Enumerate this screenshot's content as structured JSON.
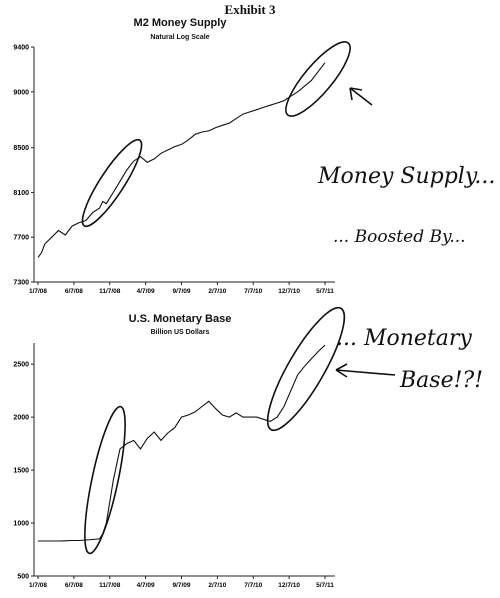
{
  "exhibit_label": "Exhibit 3",
  "chart_data": [
    {
      "type": "line",
      "title": "M2 Money Supply",
      "subtitle": "Natural Log Scale",
      "x_ticks": [
        "1/7/08",
        "6/7/08",
        "11/7/08",
        "4/7/09",
        "9/7/09",
        "2/7/10",
        "7/7/10",
        "12/7/10",
        "5/7/11"
      ],
      "y_ticks": [
        "7300",
        "7700",
        "8100",
        "8500",
        "9000",
        "9400"
      ],
      "ylim": [
        7300,
        9400
      ],
      "series": [
        {
          "x": [
            0,
            0.5,
            1,
            2,
            3,
            4,
            5,
            6,
            7,
            8,
            9,
            9.5,
            10,
            11,
            12,
            13,
            14,
            15,
            16,
            17,
            18,
            19,
            20,
            21,
            22,
            23,
            24,
            25,
            26,
            27,
            28,
            29,
            30,
            31,
            32,
            33,
            34,
            35,
            36,
            37,
            38,
            39,
            40,
            41,
            42
          ],
          "values": [
            7520,
            7560,
            7640,
            7700,
            7760,
            7720,
            7800,
            7830,
            7850,
            7920,
            7960,
            8020,
            8000,
            8100,
            8200,
            8300,
            8380,
            8420,
            8370,
            8400,
            8450,
            8480,
            8510,
            8530,
            8570,
            8620,
            8640,
            8650,
            8680,
            8700,
            8720,
            8760,
            8800,
            8820,
            8840,
            8860,
            8880,
            8900,
            8920,
            8960,
            9000,
            9050,
            9100,
            9180,
            9260
          ]
        }
      ]
    },
    {
      "type": "line",
      "title": "U.S. Monetary Base",
      "subtitle": "Billion US Dollars",
      "x_ticks": [
        "1/7/08",
        "6/7/08",
        "11/7/08",
        "4/7/09",
        "9/7/09",
        "2/7/10",
        "7/7/10",
        "12/7/10",
        "5/7/11"
      ],
      "y_ticks": [
        "500",
        "1000",
        "1500",
        "2000",
        "2500"
      ],
      "ylim": [
        500,
        2700
      ],
      "series": [
        {
          "x": [
            0,
            1,
            2,
            3,
            4,
            5,
            6,
            7,
            8,
            9,
            9.5,
            10,
            10.5,
            11,
            11.5,
            12,
            13,
            14,
            15,
            16,
            17,
            18,
            19,
            20,
            21,
            22,
            23,
            24,
            25,
            26,
            27,
            28,
            29,
            30,
            31,
            32,
            33,
            34,
            35,
            36,
            37,
            38,
            39,
            40,
            41,
            42
          ],
          "values": [
            830,
            830,
            830,
            830,
            832,
            835,
            835,
            840,
            845,
            850,
            900,
            1000,
            1200,
            1400,
            1550,
            1700,
            1750,
            1780,
            1700,
            1800,
            1860,
            1780,
            1850,
            1900,
            2000,
            2020,
            2050,
            2100,
            2150,
            2080,
            2020,
            2000,
            2040,
            2000,
            2000,
            2000,
            1980,
            1960,
            2000,
            2100,
            2250,
            2400,
            2480,
            2550,
            2620,
            2680
          ]
        }
      ]
    }
  ],
  "annotations": {
    "money_supply": "Money Supply...",
    "boosted_by": "... Boosted By...",
    "monetary": "... Monetary",
    "base": "Base!?!"
  }
}
